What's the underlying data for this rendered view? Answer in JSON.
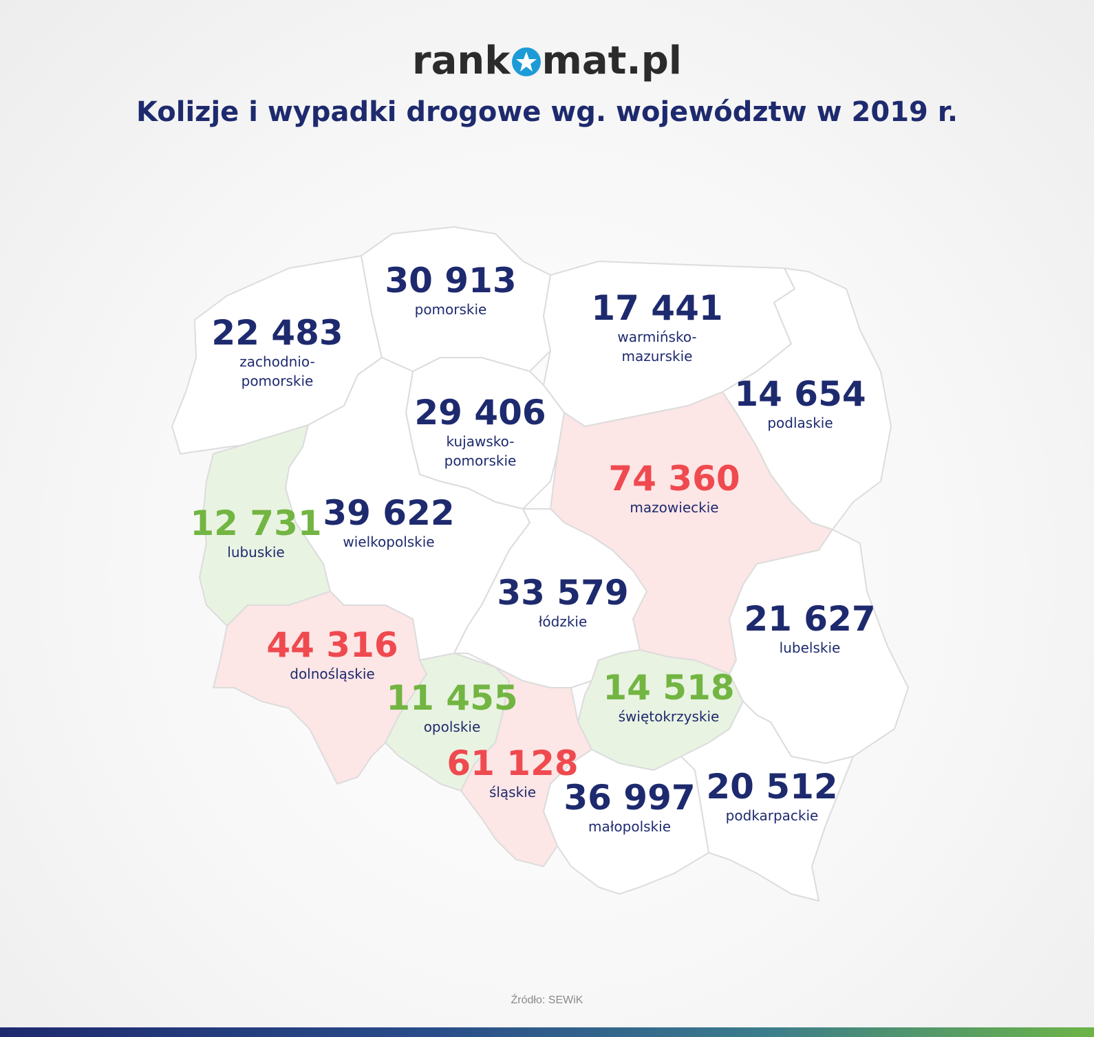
{
  "header": {
    "logo_left": "rank",
    "logo_right": "mat.pl",
    "title": "Kolizje i wypadki drogowe wg. województw w 2019 r."
  },
  "colors": {
    "default_fill": "#ffffff",
    "high_fill": "#fde6e6",
    "low_fill": "#e9f3e2",
    "high_text": "#ef4a4f",
    "low_text": "#72b542",
    "default_text": "#1e2a6e",
    "border": "#d9d9d9"
  },
  "regions": [
    {
      "id": "zachodniopomorskie",
      "value": "22 483",
      "name": "zachodnio-\npomorskie",
      "level": "default"
    },
    {
      "id": "pomorskie",
      "value": "30 913",
      "name": "pomorskie",
      "level": "default"
    },
    {
      "id": "warminsko-mazurskie",
      "value": "17 441",
      "name": "warmińsko-\nmazurskie",
      "level": "default"
    },
    {
      "id": "podlaskie",
      "value": "14 654",
      "name": "podlaskie",
      "level": "default"
    },
    {
      "id": "kujawsko-pomorskie",
      "value": "29 406",
      "name": "kujawsko-\npomorskie",
      "level": "default"
    },
    {
      "id": "mazowieckie",
      "value": "74 360",
      "name": "mazowieckie",
      "level": "high"
    },
    {
      "id": "lubuskie",
      "value": "12 731",
      "name": "lubuskie",
      "level": "low"
    },
    {
      "id": "wielkopolskie",
      "value": "39 622",
      "name": "wielkopolskie",
      "level": "default"
    },
    {
      "id": "lodzkie",
      "value": "33 579",
      "name": "łódzkie",
      "level": "default"
    },
    {
      "id": "lubelskie",
      "value": "21 627",
      "name": "lubelskie",
      "level": "default"
    },
    {
      "id": "dolnoslaskie",
      "value": "44 316",
      "name": "dolnośląskie",
      "level": "high"
    },
    {
      "id": "opolskie",
      "value": "11 455",
      "name": "opolskie",
      "level": "low"
    },
    {
      "id": "swietokrzyskie",
      "value": "14 518",
      "name": "świętokrzyskie",
      "level": "low"
    },
    {
      "id": "slaskie",
      "value": "61 128",
      "name": "śląskie",
      "level": "high"
    },
    {
      "id": "malopolskie",
      "value": "36 997",
      "name": "małopolskie",
      "level": "default"
    },
    {
      "id": "podkarpackie",
      "value": "20 512",
      "name": "podkarpackie",
      "level": "default"
    }
  ],
  "footer": {
    "source": "Źródło: SEWiK"
  }
}
